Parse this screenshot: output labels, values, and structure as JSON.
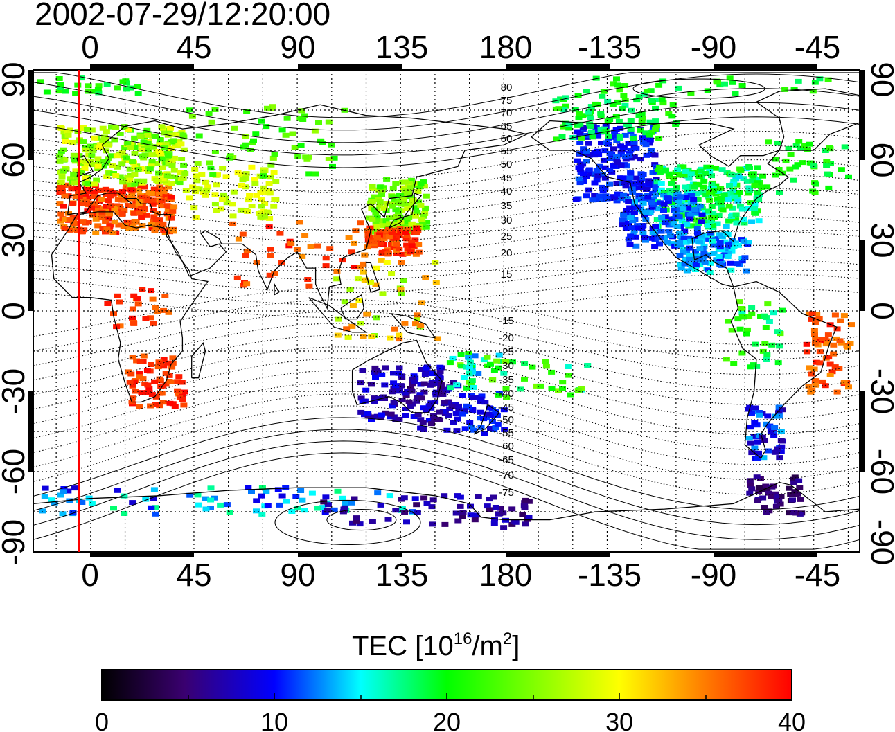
{
  "title": "2002-07-29/12:20:00",
  "map": {
    "top_lon_ticks": [
      "0",
      "45",
      "90",
      "135",
      "180",
      "-135",
      "-90",
      "-45"
    ],
    "bottom_lon_ticks": [
      "0",
      "45",
      "90",
      "135",
      "180",
      "-135",
      "-90",
      "-45"
    ],
    "left_lat_ticks": [
      "90",
      "60",
      "30",
      "0",
      "-30",
      "-60",
      "-90"
    ],
    "right_lat_ticks": [
      "90",
      "60",
      "30",
      "0",
      "-30",
      "-60",
      "-90"
    ],
    "lon_range": [
      -25,
      335
    ],
    "lat_range": [
      -90,
      90
    ],
    "grid": "dotted 15-degree graticule",
    "marker_line_longitude": -5,
    "marker_line_color": "#ff0000",
    "contour_labels_north": [
      "80",
      "75",
      "70",
      "65",
      "60",
      "55",
      "50",
      "45",
      "40",
      "35",
      "30",
      "25",
      "20",
      "15"
    ],
    "contour_labels_south": [
      "-15",
      "-20",
      "-25",
      "-30",
      "-35",
      "-40",
      "-45",
      "-50",
      "-55",
      "-60",
      "-65",
      "-70",
      "-75"
    ]
  },
  "colorbar": {
    "title_prefix": "TEC  [10",
    "title_exp1": "16",
    "title_mid": "/m",
    "title_exp2": "2",
    "title_suffix": "]",
    "ticks": [
      "0",
      "10",
      "20",
      "30",
      "40"
    ],
    "range": [
      0,
      40
    ],
    "colors": [
      "#000000",
      "#3a0070",
      "#0000ff",
      "#00ffff",
      "#00ff00",
      "#ffff00",
      "#ff8000",
      "#ff0000"
    ]
  }
}
